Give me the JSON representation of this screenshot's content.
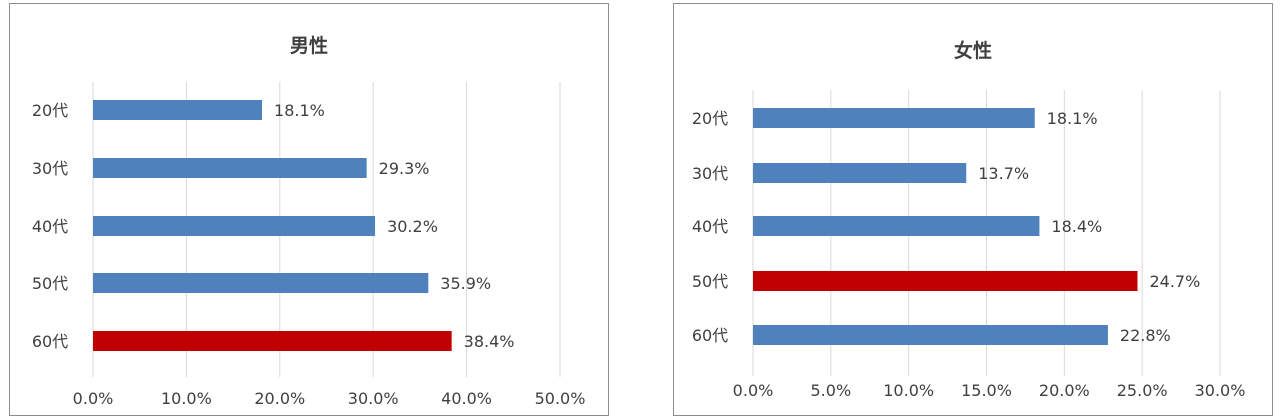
{
  "chart_data": [
    {
      "type": "bar",
      "orientation": "horizontal",
      "title": "男性",
      "categories": [
        "20代",
        "30代",
        "40代",
        "50代",
        "60代"
      ],
      "values": [
        18.1,
        29.3,
        30.2,
        35.9,
        38.4
      ],
      "value_labels": [
        "18.1%",
        "29.3%",
        "30.2%",
        "35.9%",
        "38.4%"
      ],
      "highlight_index": 4,
      "xlim": [
        0,
        50
      ],
      "xticks": [
        0,
        10,
        20,
        30,
        40,
        50
      ],
      "xtick_labels": [
        "0.0%",
        "10.0%",
        "20.0%",
        "30.0%",
        "40.0%",
        "50.0%"
      ],
      "grid": true,
      "legend": "none",
      "colors": {
        "bar": "#4f81bd",
        "highlight": "#c00000",
        "grid": "#d9d9d9"
      }
    },
    {
      "type": "bar",
      "orientation": "horizontal",
      "title": "女性",
      "categories": [
        "20代",
        "30代",
        "40代",
        "50代",
        "60代"
      ],
      "values": [
        18.1,
        13.7,
        18.4,
        24.7,
        22.8
      ],
      "value_labels": [
        "18.1%",
        "13.7%",
        "18.4%",
        "24.7%",
        "22.8%"
      ],
      "highlight_index": 3,
      "xlim": [
        0,
        30
      ],
      "xticks": [
        0,
        5,
        10,
        15,
        20,
        25,
        30
      ],
      "xtick_labels": [
        "0.0%",
        "5.0%",
        "10.0%",
        "15.0%",
        "20.0%",
        "25.0%",
        "30.0%"
      ],
      "grid": true,
      "legend": "none",
      "colors": {
        "bar": "#4f81bd",
        "highlight": "#c00000",
        "grid": "#d9d9d9"
      }
    }
  ]
}
